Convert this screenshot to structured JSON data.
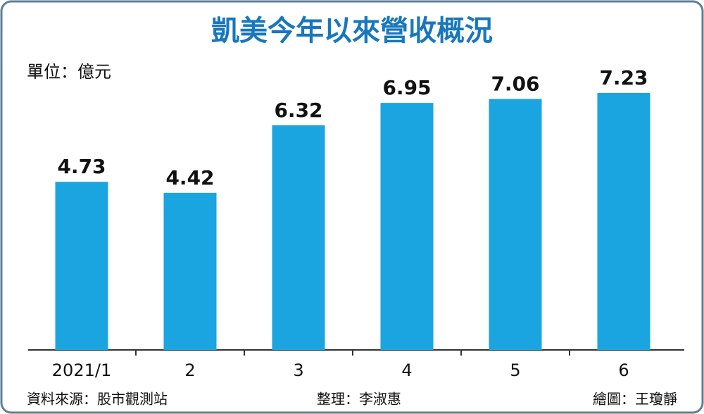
{
  "chart_data": {
    "type": "bar",
    "title": "凱美今年以來營收概況",
    "unit": "單位：億元",
    "categories": [
      "2021/1",
      "2",
      "3",
      "4",
      "5",
      "6"
    ],
    "values": [
      4.73,
      4.42,
      6.32,
      6.95,
      7.06,
      7.23
    ],
    "color": "#1aa5e0",
    "source": "資料來源：股市觀測站",
    "editor": "整理：李淑惠",
    "artist": "繪圖：王瓊靜"
  }
}
